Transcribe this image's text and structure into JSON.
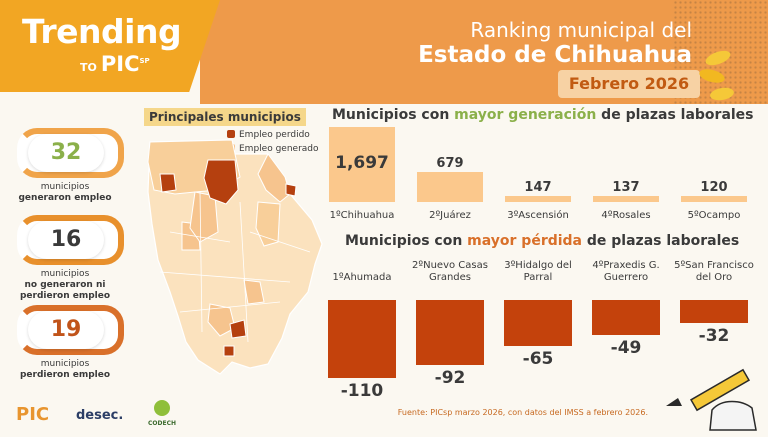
{
  "brand": {
    "title": "Trending",
    "to": "TO",
    "pic": "PIC",
    "pic_sup": "SP"
  },
  "header": {
    "line1": "Ranking municipal del",
    "line2": "Estado de Chihuahua",
    "date": "Febrero 2026"
  },
  "kpis": [
    {
      "value": "32",
      "label1": "municipios",
      "label2": "generaron empleo",
      "color": "#8bb04a",
      "ring": "#f0a44a"
    },
    {
      "value": "16",
      "label1": "municipios",
      "label2": "no  generaron ni",
      "label3": "perdieron empleo",
      "color": "#3a3a3a",
      "ring": "#e8902c"
    },
    {
      "value": "19",
      "label1": "municipios",
      "label2": "perdieron empleo",
      "color": "#c1541a",
      "ring": "#d9702a"
    }
  ],
  "map": {
    "title": "Principales municipios",
    "legend": [
      {
        "label": "Empleo perdido",
        "color": "#b5400f"
      },
      {
        "label": "Empleo generado",
        "color": "#f6c48e"
      }
    ]
  },
  "chart_data": [
    {
      "type": "bar",
      "title_pre": "Municipios con ",
      "title_hl": "mayor generación",
      "title_post": " de plazas laborales",
      "categories": [
        "1ºChihuahua",
        "2ºJuárez",
        "3ºAscensión",
        "4ºRosales",
        "5ºOcampo"
      ],
      "values": [
        1697,
        679,
        147,
        137,
        120
      ],
      "value_labels": [
        "1,697",
        "679",
        "147",
        "137",
        "120"
      ],
      "color": "#fbc88c"
    },
    {
      "type": "bar",
      "title_pre": "Municipios con ",
      "title_hl": "mayor pérdida",
      "title_post": " de plazas laborales",
      "categories": [
        "1ºAhumada",
        "2ºNuevo Casas Grandes",
        "3ºHidalgo del Parral",
        "4ºPraxedis G. Guerrero",
        "5ºSan Francisco del Oro"
      ],
      "category_lines": [
        [
          "1ºAhumada"
        ],
        [
          "2ºNuevo Casas",
          "Grandes"
        ],
        [
          "3ºHidalgo del",
          "Parral"
        ],
        [
          "4ºPraxedis G.",
          "Guerrero"
        ],
        [
          "5ºSan Francisco",
          "del Oro"
        ]
      ],
      "values": [
        -110,
        -92,
        -65,
        -49,
        -32
      ],
      "color": "#c4420c"
    }
  ],
  "footer": {
    "source": "Fuente: PICsp marzo 2026, con datos del IMSS a febrero 2026.",
    "logo1": "PIC",
    "logo2": "desec.",
    "logo3": "CODECH"
  }
}
